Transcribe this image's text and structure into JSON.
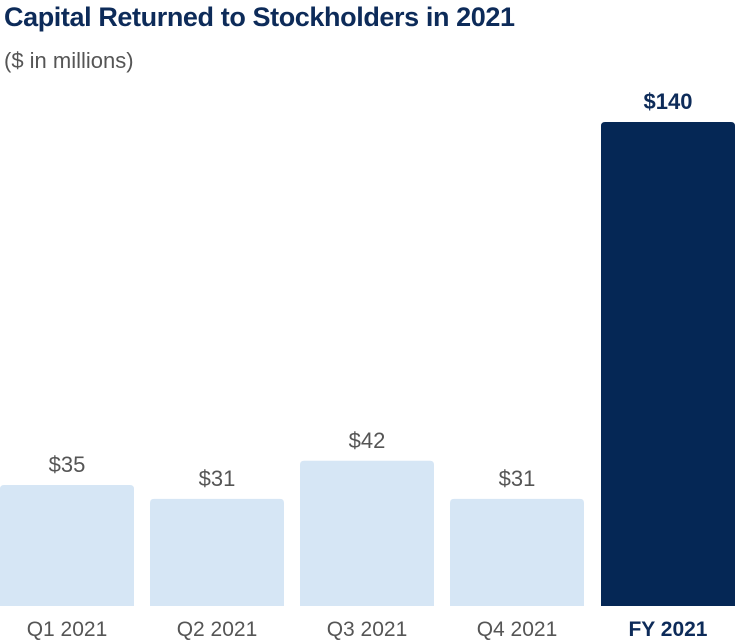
{
  "chart_data": {
    "type": "bar",
    "title": "Capital Returned to Stockholders in 2021",
    "subtitle": "($ in millions)",
    "categories": [
      "Q1 2021",
      "Q2 2021",
      "Q3 2021",
      "Q4 2021",
      "FY 2021"
    ],
    "values": [
      35,
      31,
      42,
      31,
      140
    ],
    "value_labels": [
      "$35",
      "$31",
      "$42",
      "$31",
      "$140"
    ],
    "highlight_index": 4,
    "ylim": [
      0,
      140
    ],
    "grid": false,
    "legend": "none",
    "colors": {
      "quarter_bar": "#d6e6f5",
      "total_bar": "#052755",
      "title": "#0d2b59",
      "label": "#555555",
      "total_label": "#0d2b59"
    }
  }
}
